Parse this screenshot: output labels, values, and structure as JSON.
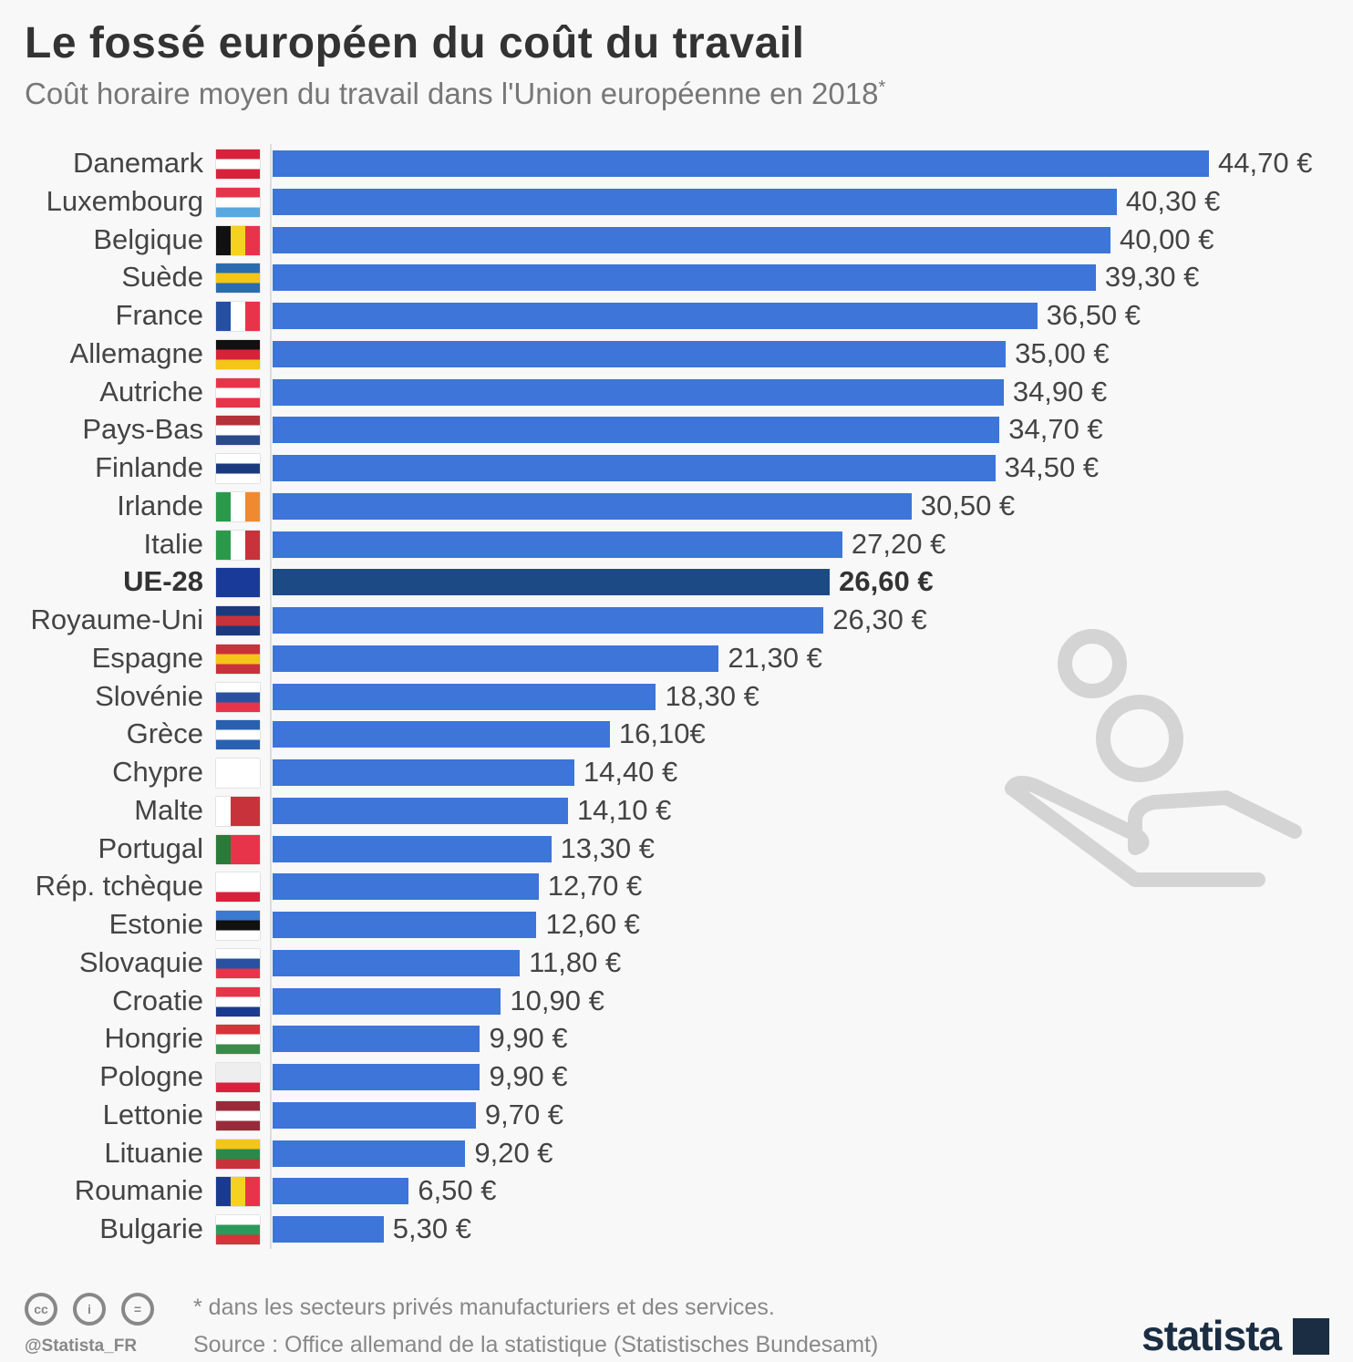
{
  "chart_data": {
    "type": "bar",
    "orientation": "horizontal",
    "title": "Le fossé européen du coût du travail",
    "subtitle": "Coût horaire moyen du travail dans l'Union européenne en 2018",
    "subtitle_mark": "*",
    "unit": "€",
    "xlim": [
      0,
      44.7
    ],
    "highlight": "UE-28",
    "categories": [
      "Danemark",
      "Luxembourg",
      "Belgique",
      "Suède",
      "France",
      "Allemagne",
      "Autriche",
      "Pays-Bas",
      "Finlande",
      "Irlande",
      "Italie",
      "UE-28",
      "Royaume-Uni",
      "Espagne",
      "Slovénie",
      "Grèce",
      "Chypre",
      "Malte",
      "Portugal",
      "Rép. tchèque",
      "Estonie",
      "Slovaquie",
      "Croatie",
      "Hongrie",
      "Pologne",
      "Lettonie",
      "Lituanie",
      "Roumanie",
      "Bulgarie"
    ],
    "values": [
      44.7,
      40.3,
      40.0,
      39.3,
      36.5,
      35.0,
      34.9,
      34.7,
      34.5,
      30.5,
      27.2,
      26.6,
      26.3,
      21.3,
      18.3,
      16.1,
      14.4,
      14.1,
      13.3,
      12.7,
      12.6,
      11.8,
      10.9,
      9.9,
      9.9,
      9.7,
      9.2,
      6.5,
      5.3
    ],
    "labels": [
      "44,70 €",
      "40,30 €",
      "40,00 €",
      "39,30 €",
      "36,50 €",
      "35,00 €",
      "34,90 €",
      "34,70 €",
      "34,50 €",
      "30,50 €",
      "27,20 €",
      "26,60 €",
      "26,30 €",
      "21,30 €",
      "18,30 €",
      "16,10€",
      "14,40 €",
      "14,10 €",
      "13,30 €",
      "12,70 €",
      "12,60 €",
      "11,80 €",
      "10,90 €",
      "9,90 €",
      "9,90 €",
      "9,70 €",
      "9,20 €",
      "6,50 €",
      "5,30 €"
    ],
    "bar_color": "#3d75d8",
    "highlight_color": "#1c4a85"
  },
  "flags": [
    [
      "h",
      "#d8213b",
      "#fff",
      "#d8213b"
    ],
    [
      "h",
      "#e8344a",
      "#fff",
      "#5aa8e0"
    ],
    [
      "v",
      "#111",
      "#f5d120",
      "#e8344a"
    ],
    [
      "h",
      "#2b6cb0",
      "#f5c518",
      "#2b6cb0"
    ],
    [
      "v",
      "#2350a0",
      "#fff",
      "#e8344a"
    ],
    [
      "h",
      "#111",
      "#d8213b",
      "#f5c518"
    ],
    [
      "h",
      "#e8344a",
      "#fff",
      "#e8344a"
    ],
    [
      "h",
      "#b5323a",
      "#fff",
      "#2a4a8a"
    ],
    [
      "h",
      "#fff",
      "#1a3a80",
      "#fff"
    ],
    [
      "v",
      "#2a9a4a",
      "#fff",
      "#f08a30"
    ],
    [
      "v",
      "#2a9a4a",
      "#fff",
      "#c8323a"
    ],
    [
      "h",
      "#1a3a9a",
      "#1a3a9a",
      "#1a3a9a"
    ],
    [
      "h",
      "#1a3a80",
      "#c8323a",
      "#1a3a80"
    ],
    [
      "h",
      "#c8323a",
      "#f5c518",
      "#c8323a"
    ],
    [
      "h",
      "#fff",
      "#2a50a0",
      "#e8344a"
    ],
    [
      "h",
      "#2a60b0",
      "#fff",
      "#2a60b0"
    ],
    [
      "h",
      "#fff",
      "#fff",
      "#fff"
    ],
    [
      "v",
      "#fff",
      "#c8323a",
      "#c8323a"
    ],
    [
      "v",
      "#2a7a3a",
      "#e8344a",
      "#e8344a"
    ],
    [
      "h",
      "#fff",
      "#fff",
      "#d8213b"
    ],
    [
      "h",
      "#3a7ad0",
      "#111",
      "#fff"
    ],
    [
      "h",
      "#fff",
      "#2a50a0",
      "#e8344a"
    ],
    [
      "h",
      "#e8344a",
      "#fff",
      "#1a3a90"
    ],
    [
      "h",
      "#d8323a",
      "#fff",
      "#3a8a4a"
    ],
    [
      "h",
      "#eee",
      "#eee",
      "#d8213b"
    ],
    [
      "h",
      "#9a2a3a",
      "#fff",
      "#9a2a3a"
    ],
    [
      "h",
      "#f5c518",
      "#2a8a4a",
      "#c8323a"
    ],
    [
      "v",
      "#1a3a90",
      "#f5d120",
      "#e8344a"
    ],
    [
      "h",
      "#fff",
      "#2a9a5a",
      "#d8323a"
    ]
  ],
  "footer": {
    "note": "* dans les secteurs privés manufacturiers et des services.",
    "source": "Source : Office allemand de la statistique (Statistisches Bundesamt)",
    "handle": "@Statista_FR",
    "cc": "cc",
    "brand": "statista"
  }
}
